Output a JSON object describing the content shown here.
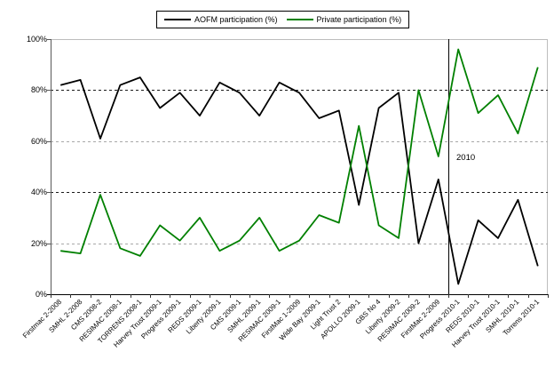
{
  "chart_data": {
    "type": "line",
    "title": "",
    "xlabel": "",
    "ylabel": "",
    "ylim": [
      0,
      100
    ],
    "y_ticks": [
      "0%",
      "20%",
      "40%",
      "60%",
      "80%",
      "100%"
    ],
    "grid": "horizontal dashed lines every 20%, alternating dark (40%, 80%) and light gray (20%, 60%)",
    "legend_position": "top-center",
    "categories": [
      "Firstmac 2-2008",
      "SMHL 2-2008",
      "CMS 2008-2",
      "RESIMAC 2008-1",
      "TORRENS 2008-1",
      "Harvey Trust 2009-1",
      "Progress 2009-1",
      "REDS 2009-1",
      "Liberty 2009-1",
      "CMS 2009-1",
      "SMHL 2009-1",
      "RESIMAC 2009-1",
      "FirstMac 1-2009",
      "Wide Bay 2009-1",
      "Light Trust 2",
      "APOLLO 2009-1",
      "GBS No 4",
      "Liberty 2009-2",
      "RESIMAC 2009-2",
      "FirstMac 2-2009",
      "Progress 2010-1",
      "REDS 2010-1",
      "Harvey Trust 2010-1",
      "SMHL 2010-1",
      "Torrens 2010-1"
    ],
    "series": [
      {
        "name": "AOFM participation (%)",
        "color": "#000000",
        "values": [
          82,
          84,
          61,
          82,
          85,
          73,
          79,
          70,
          83,
          79,
          70,
          83,
          79,
          69,
          72,
          35,
          73,
          79,
          20,
          45,
          4,
          29,
          22,
          37,
          11
        ]
      },
      {
        "name": "Private participation (%)",
        "color": "#008000",
        "values": [
          17,
          16,
          39,
          18,
          15,
          27,
          21,
          30,
          17,
          21,
          30,
          17,
          21,
          31,
          28,
          66,
          27,
          22,
          80,
          54,
          96,
          71,
          78,
          63,
          89
        ]
      }
    ],
    "annotations": [
      {
        "text": "2010",
        "type": "vertical-divider-line",
        "after_category_index": 20,
        "description": "solid vertical line separating 2009 deals from 2010 deals, label to the right of the line"
      }
    ]
  }
}
